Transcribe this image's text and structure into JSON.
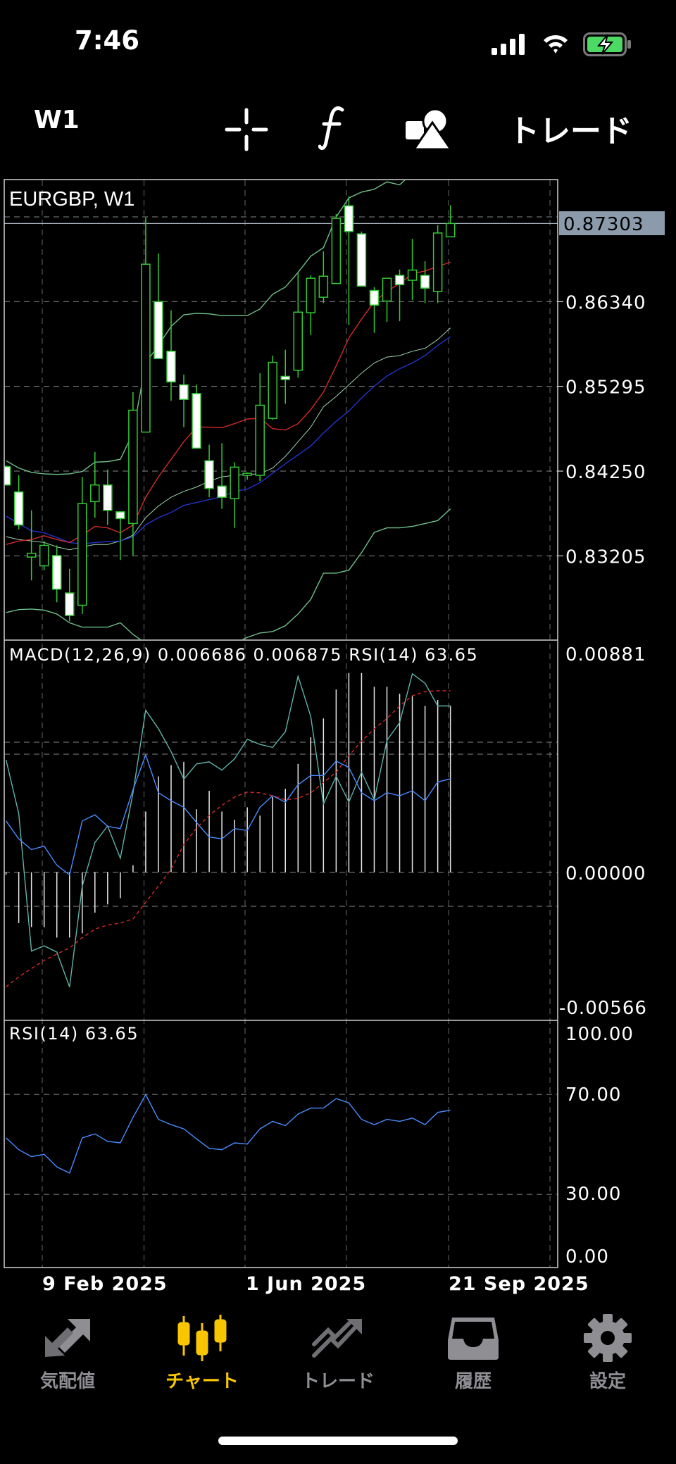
{
  "status_bar": {
    "time": "7:46",
    "battery_color": "#4cd964"
  },
  "toolbar": {
    "timeframe": "W1",
    "icons": [
      "crosshair-icon",
      "function-icon",
      "objects-icon"
    ],
    "trade_label": "トレード"
  },
  "colors": {
    "bull": "#34c934",
    "bear_fill": "#ffffff",
    "ma_red": "#d42a2a",
    "ma_blue": "#2233cc",
    "band": "#6fbf8a",
    "rsi_line": "#4a8cff",
    "teal": "#5fb3a8",
    "active_tab": "#f7c600",
    "inactive_tab": "#8e8e93",
    "price_box": "#8b9bab"
  },
  "chart_data": {
    "type": "candlestick",
    "symbol_label": "EURGBP, W1",
    "current_price": "0.87303",
    "price_ticks": [
      "0.86340",
      "0.85295",
      "0.84250",
      "0.83205"
    ],
    "x_tick_labels": [
      "9 Feb 2025",
      "1 Jun 2025",
      "21 Sep 2025"
    ],
    "candles_ohlc": [
      [
        0.84306,
        0.84324,
        0.84072,
        0.84079
      ],
      [
        0.83993,
        0.84198,
        0.83532,
        0.83586
      ],
      [
        0.8319,
        0.83766,
        0.82902,
        0.83237
      ],
      [
        0.83082,
        0.83388,
        0.83028,
        0.83334
      ],
      [
        0.83208,
        0.83334,
        0.82632,
        0.82794
      ],
      [
        0.82747,
        0.83046,
        0.82398,
        0.8247
      ],
      [
        0.82596,
        0.8418,
        0.82488,
        0.83849
      ],
      [
        0.83874,
        0.84486,
        0.83676,
        0.84079
      ],
      [
        0.84079,
        0.8427,
        0.83586,
        0.83766
      ],
      [
        0.83748,
        0.83748,
        0.83154,
        0.83665
      ],
      [
        0.83604,
        0.85224,
        0.83208,
        0.85001
      ],
      [
        0.84731,
        0.87377,
        0.84731,
        0.86801
      ],
      [
        0.8634,
        0.86934,
        0.85638,
        0.85638
      ],
      [
        0.85728,
        0.86232,
        0.85116,
        0.8535
      ],
      [
        0.85314,
        0.8544,
        0.84792,
        0.85134
      ],
      [
        0.85206,
        0.85314,
        0.84533,
        0.84533
      ],
      [
        0.84378,
        0.84576,
        0.83928,
        0.84036
      ],
      [
        0.84065,
        0.84594,
        0.83784,
        0.83928
      ],
      [
        0.8391,
        0.8436,
        0.8355,
        0.84299
      ],
      [
        0.84198,
        0.84234,
        0.84144,
        0.84223
      ],
      [
        0.84198,
        0.85458,
        0.84126,
        0.85062
      ],
      [
        0.849,
        0.85674,
        0.84882,
        0.85591
      ],
      [
        0.85418,
        0.85746,
        0.8508,
        0.85379
      ],
      [
        0.85494,
        0.86689,
        0.85404,
        0.8621
      ],
      [
        0.86203,
        0.86664,
        0.85926,
        0.86628
      ],
      [
        0.86394,
        0.86959,
        0.86322,
        0.86653
      ],
      [
        0.86563,
        0.8742,
        0.86556,
        0.87366
      ],
      [
        0.87521,
        0.87636,
        0.86052,
        0.87204
      ],
      [
        0.87175,
        0.87204,
        0.86531,
        0.86531
      ],
      [
        0.86477,
        0.8652,
        0.85955,
        0.86297
      ],
      [
        0.86347,
        0.86628,
        0.86088,
        0.86628
      ],
      [
        0.86664,
        0.86736,
        0.86099,
        0.86549
      ],
      [
        0.86603,
        0.87114,
        0.86358,
        0.86729
      ],
      [
        0.86664,
        0.86837,
        0.86322,
        0.86506
      ],
      [
        0.86466,
        0.87283,
        0.86322,
        0.87186
      ],
      [
        0.87139,
        0.87528,
        0.87139,
        0.87303
      ]
    ],
    "overlays": {
      "band_upper": [
        0.84378,
        0.84288,
        0.84234,
        0.84216,
        0.84209,
        0.84216,
        0.84245,
        0.8436,
        0.84367,
        0.84396,
        0.8472,
        0.85584,
        0.858,
        0.86034,
        0.86178,
        0.86196,
        0.86189,
        0.86167,
        0.86167,
        0.86167,
        0.8625,
        0.8643,
        0.8652,
        0.867,
        0.869,
        0.87006,
        0.87384,
        0.87618,
        0.8769,
        0.87726,
        0.87816,
        0.8778,
        0.87924,
        0.87996,
        0.88068,
        0.8814
      ],
      "band_middle": [
        0.83442,
        0.83406,
        0.83388,
        0.8337,
        0.83316,
        0.8328,
        0.83316,
        0.83345,
        0.83345,
        0.83388,
        0.8346,
        0.83676,
        0.8382,
        0.83928,
        0.84,
        0.84054,
        0.84126,
        0.8418,
        0.84198,
        0.84209,
        0.84216,
        0.84288,
        0.84432,
        0.84612,
        0.84792,
        0.85044,
        0.8517,
        0.85314,
        0.85458,
        0.85584,
        0.85656,
        0.85674,
        0.85728,
        0.85764,
        0.85872,
        0.86016
      ],
      "band_lower": [
        0.82506,
        0.82542,
        0.82549,
        0.82535,
        0.82488,
        0.8238,
        0.82326,
        0.82326,
        0.82326,
        0.8238,
        0.82236,
        0.82128,
        0.82056,
        0.81984,
        0.81948,
        0.81948,
        0.81984,
        0.82056,
        0.82128,
        0.822,
        0.82254,
        0.82272,
        0.82344,
        0.82488,
        0.82668,
        0.82992,
        0.82992,
        0.83028,
        0.83244,
        0.83494,
        0.8355,
        0.8355,
        0.83568,
        0.83604,
        0.8364,
        0.83784
      ],
      "ma_red": [
        0.83345,
        0.83388,
        0.83406,
        0.83453,
        0.83406,
        0.8337,
        0.8346,
        0.83568,
        0.8355,
        0.83489,
        0.83586,
        0.83928,
        0.8418,
        0.84396,
        0.84612,
        0.84792,
        0.84792,
        0.84785,
        0.84835,
        0.84893,
        0.849,
        0.84774,
        0.84756,
        0.84835,
        0.85008,
        0.85224,
        0.85548,
        0.8589,
        0.86124,
        0.8634,
        0.86466,
        0.86563,
        0.86682,
        0.86718,
        0.86772,
        0.86826
      ],
      "ma_blue": [
        0.83694,
        0.83604,
        0.83514,
        0.83489,
        0.83431,
        0.8337,
        0.83352,
        0.8337,
        0.83381,
        0.83388,
        0.83442,
        0.83586,
        0.83676,
        0.83741,
        0.83827,
        0.83863,
        0.83899,
        0.83935,
        0.84,
        0.84029,
        0.84108,
        0.84223,
        0.8434,
        0.8445,
        0.8456,
        0.8472,
        0.84864,
        0.8499,
        0.85152,
        0.85296,
        0.85422,
        0.85512,
        0.85584,
        0.85674,
        0.858,
        0.85908
      ]
    },
    "macd": {
      "label": "MACD(12,26,9) 0.006686 0.006875 RSI(14) 63.65",
      "axis_max": "0.00881",
      "axis_zero": "0.00000",
      "axis_min": "-0.00566",
      "histogram": [
        -0.0001,
        -0.00204,
        -0.0022,
        -0.0022,
        -0.00262,
        -0.00262,
        -0.00245,
        -0.00162,
        -0.00129,
        -0.00104,
        0.00028,
        0.00243,
        0.00384,
        0.00429,
        0.00442,
        0.00252,
        0.00326,
        0.00243,
        0.0021,
        0.0026,
        0.00227,
        0.00301,
        0.00334,
        0.00434,
        0.00541,
        0.00616,
        0.00732,
        0.00798,
        0.00798,
        0.00743,
        0.00743,
        0.00715,
        0.00707,
        0.00666,
        0.0069,
        0.00666
      ],
      "signal": [
        -0.0046,
        -0.00419,
        -0.00386,
        -0.00353,
        -0.00328,
        -0.00303,
        -0.00262,
        -0.00228,
        -0.00212,
        -0.00204,
        -0.00187,
        -0.00121,
        -0.00055,
        0.00012,
        0.00111,
        0.00177,
        0.00227,
        0.00268,
        0.00301,
        0.00321,
        0.00318,
        0.00306,
        0.0029,
        0.00296,
        0.00318,
        0.00359,
        0.00401,
        0.00467,
        0.00525,
        0.00575,
        0.00616,
        0.00666,
        0.00707,
        0.00724,
        0.00727,
        0.00727
      ],
      "teal_line": [
        0.0045,
        0.00235,
        -0.00316,
        -0.00295,
        -0.0032,
        -0.0046,
        -0.00055,
        0.00119,
        0.00185,
        0.00056,
        0.00318,
        0.00649,
        0.00575,
        0.00483,
        0.00373,
        0.00434,
        0.00442,
        0.00409,
        0.00454,
        0.00533,
        0.00512,
        0.005,
        0.00563,
        0.00785,
        0.00624,
        0.00273,
        0.00384,
        0.00281,
        0.00401,
        0.0029,
        0.00528,
        0.00599,
        0.00795,
        0.00757,
        0.00666,
        0.00666
      ]
    },
    "rsi": {
      "label": "RSI(14) 63.65",
      "ticks": [
        "100.00",
        "70.00",
        "30.00",
        "0.00"
      ],
      "levels": [
        70,
        30
      ],
      "values": [
        52.6,
        47.9,
        45.1,
        46.0,
        41.0,
        38.5,
        52.6,
        54.2,
        51.2,
        50.6,
        60.8,
        69.9,
        60.0,
        57.9,
        56.2,
        52.2,
        48.4,
        47.9,
        50.6,
        50.1,
        56.2,
        59.2,
        57.5,
        62.1,
        64.5,
        64.5,
        68.3,
        66.6,
        60.0,
        57.9,
        60.0,
        59.2,
        60.5,
        57.9,
        62.8,
        63.65
      ]
    }
  },
  "tab_bar": {
    "tabs": [
      {
        "label": "気配値",
        "icon": "quotes-arrows-icon",
        "active": false
      },
      {
        "label": "チャート",
        "icon": "candlestick-chart-icon",
        "active": true
      },
      {
        "label": "トレード",
        "icon": "trade-trend-icon",
        "active": false
      },
      {
        "label": "履歴",
        "icon": "history-inbox-icon",
        "active": false
      },
      {
        "label": "設定",
        "icon": "settings-gear-icon",
        "active": false
      }
    ]
  }
}
